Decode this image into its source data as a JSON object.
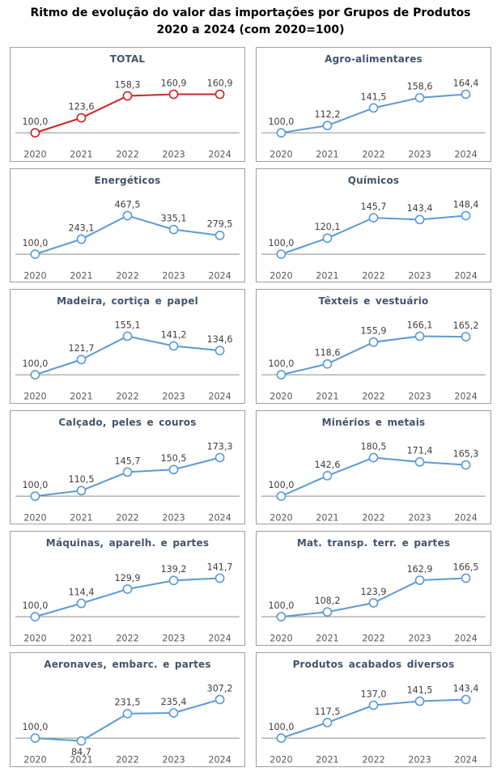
{
  "title": {
    "line1": "Ritmo de evolução do valor das importações por Grupos de Produtos",
    "line2": "2020 a 2024 (com 2020=100)"
  },
  "colors": {
    "total_series": "#cb2626",
    "default_series": "#5b9bd5",
    "marker_fill": "#ffffff",
    "axis_line": "#8c8c8c",
    "data_label": "#3f3f3f",
    "tick_label": "#595959",
    "panel_title": "#44546a",
    "panel_border": "#9e9e9e"
  },
  "chart_data": {
    "type": "line",
    "base_note": "2020=100",
    "categories": [
      "2020",
      "2021",
      "2022",
      "2023",
      "2024"
    ],
    "legend_position": "none",
    "grid": false,
    "charts": [
      {
        "title": "TOTAL",
        "color": "#cb2626",
        "values": [
          100.0,
          123.6,
          158.3,
          160.9,
          160.9
        ],
        "labels": [
          "100,0",
          "123,6",
          "158,3",
          "160,9",
          "160,9"
        ]
      },
      {
        "title": "Agro-alimentares",
        "color": "#5b9bd5",
        "values": [
          100.0,
          112.2,
          141.5,
          158.6,
          164.4
        ],
        "labels": [
          "100,0",
          "112,2",
          "141,5",
          "158,6",
          "164,4"
        ]
      },
      {
        "title": "Energéticos",
        "color": "#5b9bd5",
        "values": [
          100.0,
          243.1,
          467.5,
          335.1,
          279.5
        ],
        "labels": [
          "100,0",
          "243,1",
          "467,5",
          "335,1",
          "279,5"
        ]
      },
      {
        "title": "Químicos",
        "color": "#5b9bd5",
        "values": [
          100.0,
          120.1,
          145.7,
          143.4,
          148.4
        ],
        "labels": [
          "100,0",
          "120,1",
          "145,7",
          "143,4",
          "148,4"
        ]
      },
      {
        "title": "Madeira, cortiça e papel",
        "color": "#5b9bd5",
        "values": [
          100.0,
          121.7,
          155.1,
          141.2,
          134.6
        ],
        "labels": [
          "100,0",
          "121,7",
          "155,1",
          "141,2",
          "134,6"
        ]
      },
      {
        "title": "Têxteis e vestuário",
        "color": "#5b9bd5",
        "values": [
          100.0,
          118.6,
          155.9,
          166.1,
          165.2
        ],
        "labels": [
          "100,0",
          "118,6",
          "155,9",
          "166,1",
          "165,2"
        ]
      },
      {
        "title": "Calçado, peles e couros",
        "color": "#5b9bd5",
        "values": [
          100.0,
          110.5,
          145.7,
          150.5,
          173.3
        ],
        "labels": [
          "100,0",
          "110,5",
          "145,7",
          "150,5",
          "173,3"
        ]
      },
      {
        "title": "Minérios e metais",
        "color": "#5b9bd5",
        "values": [
          100.0,
          142.6,
          180.5,
          171.4,
          165.3
        ],
        "labels": [
          "100,0",
          "142,6",
          "180,5",
          "171,4",
          "165,3"
        ]
      },
      {
        "title": "Máquinas, aparelh. e partes",
        "color": "#5b9bd5",
        "values": [
          100.0,
          114.4,
          129.9,
          139.2,
          141.7
        ],
        "labels": [
          "100,0",
          "114,4",
          "129,9",
          "139,2",
          "141,7"
        ]
      },
      {
        "title": "Mat. transp. terr. e partes",
        "color": "#5b9bd5",
        "values": [
          100.0,
          108.2,
          123.9,
          162.9,
          166.5
        ],
        "labels": [
          "100,0",
          "108,2",
          "123,9",
          "162,9",
          "166,5"
        ]
      },
      {
        "title": "Aeronaves, embarc. e partes",
        "color": "#5b9bd5",
        "values": [
          100.0,
          84.7,
          231.5,
          235.4,
          307.2
        ],
        "labels": [
          "100,0",
          "84,7",
          "231,5",
          "235,4",
          "307,2"
        ]
      },
      {
        "title": "Produtos acabados diversos",
        "color": "#5b9bd5",
        "values": [
          100.0,
          117.5,
          137.0,
          141.5,
          143.4
        ],
        "labels": [
          "100,0",
          "117,5",
          "137,0",
          "141,5",
          "143,4"
        ]
      }
    ]
  }
}
